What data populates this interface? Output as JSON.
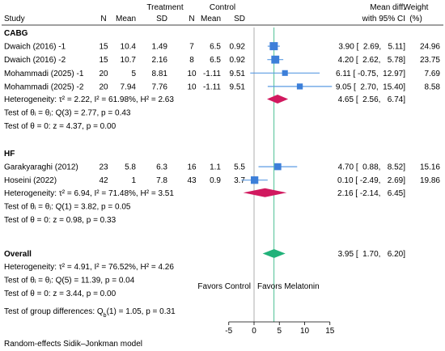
{
  "header": {
    "study": "Study",
    "treatment": "Treatment",
    "control": "Control",
    "n": "N",
    "mean": "Mean",
    "sd": "SD",
    "md_line1": "Mean diff.",
    "md_line2": "with 95% CI",
    "weight_line1": "Weight",
    "weight_line2": "(%)"
  },
  "groups": [
    {
      "name": "CABG",
      "studies": [
        {
          "study": "Dwaich (2016) -1",
          "t_n": "15",
          "t_mean": "10.4",
          "t_sd": "1.49",
          "c_n": "7",
          "c_mean": "6.5",
          "c_sd": "0.92",
          "md": 3.9,
          "lo": 2.69,
          "hi": 5.11,
          "weight": 24.96,
          "ci_text": "3.90 [  2.69,   5.11]",
          "weight_text": "24.96"
        },
        {
          "study": "Dwaich (2016) -2",
          "t_n": "15",
          "t_mean": "10.7",
          "t_sd": "2.16",
          "c_n": "8",
          "c_mean": "6.5",
          "c_sd": "0.92",
          "md": 4.2,
          "lo": 2.62,
          "hi": 5.78,
          "weight": 23.75,
          "ci_text": "4.20 [  2.62,   5.78]",
          "weight_text": "23.75"
        },
        {
          "study": "Mohammadi (2025) -1",
          "t_n": "20",
          "t_mean": "5",
          "t_sd": "8.81",
          "c_n": "10",
          "c_mean": "-1.11",
          "c_sd": "9.51",
          "md": 6.11,
          "lo": -0.75,
          "hi": 12.97,
          "weight": 7.69,
          "ci_text": "6.11 [ -0.75,  12.97]",
          "weight_text": "7.69"
        },
        {
          "study": "Mohammadi (2025) -2",
          "t_n": "20",
          "t_mean": "7.94",
          "t_sd": "7.76",
          "c_n": "10",
          "c_mean": "-1.11",
          "c_sd": "9.51",
          "md": 9.05,
          "lo": 2.7,
          "hi": 15.4,
          "weight": 8.58,
          "ci_text": "9.05 [  2.70,  15.40]",
          "weight_text": "8.58"
        }
      ],
      "pooled": {
        "md": 4.65,
        "lo": 2.56,
        "hi": 6.74,
        "ci_text": "4.65 [  2.56,   6.74]"
      },
      "stats": [
        "Heterogeneity: τ² = 2.22, I² = 61.98%, H² = 2.63",
        "Test of θᵢ = θⱼ: Q(3) = 2.77, p = 0.43",
        "Test of θ = 0: z = 4.37, p = 0.00"
      ]
    },
    {
      "name": "HF",
      "studies": [
        {
          "study": "Garakyaraghi (2012)",
          "t_n": "23",
          "t_mean": "5.8",
          "t_sd": "6.3",
          "c_n": "16",
          "c_mean": "1.1",
          "c_sd": "5.5",
          "md": 4.7,
          "lo": 0.88,
          "hi": 8.52,
          "weight": 15.16,
          "ci_text": "4.70 [  0.88,   8.52]",
          "weight_text": "15.16"
        },
        {
          "study": "Hoseini (2022)",
          "t_n": "42",
          "t_mean": "1",
          "t_sd": "7.8",
          "c_n": "43",
          "c_mean": "0.9",
          "c_sd": "3.7",
          "md": 0.1,
          "lo": -2.49,
          "hi": 2.69,
          "weight": 19.86,
          "ci_text": "0.10 [ -2.49,   2.69]",
          "weight_text": "19.86"
        }
      ],
      "pooled": {
        "md": 2.16,
        "lo": -2.14,
        "hi": 6.45,
        "ci_text": "2.16 [ -2.14,   6.45]"
      },
      "stats": [
        "Heterogeneity: τ² = 6.94, I² = 71.48%, H² = 3.51",
        "Test of θᵢ = θⱼ: Q(1) = 3.82, p = 0.05",
        "Test of θ = 0: z = 0.98, p = 0.33"
      ]
    }
  ],
  "overall": {
    "name": "Overall",
    "md": 3.95,
    "lo": 1.7,
    "hi": 6.2,
    "ci_text": "3.95 [  1.70,   6.20]",
    "stats": [
      "Heterogeneity: τ² = 4.91, I² = 76.52%, H² = 4.26",
      "Test of θᵢ = θⱼ: Q(5) = 11.39, p = 0.04",
      "Test of θ = 0: z = 3.44, p = 0.00"
    ]
  },
  "group_test": "Test of group differences: Q_b(1) = 1.05, p = 0.31",
  "favors_left": "Favors Control",
  "favors_right": "Favors Melatonin",
  "footnote": "Random-effects Sidik–Jonkman model",
  "colors": {
    "study_marker": "#3d7fd9",
    "ci_line": "#5b9be3",
    "subgroup_diamond": "#d1195f",
    "overall_diamond": "#21b27a",
    "favors_left": "#e8192c",
    "favors_right": "#000000",
    "ref_line": "#999999"
  },
  "chart_data": {
    "type": "forest",
    "x_ticks": [
      -5,
      0,
      5,
      10,
      15
    ],
    "xlim": [
      -5,
      15
    ],
    "reference_line": 0,
    "overall_line": 3.95
  }
}
